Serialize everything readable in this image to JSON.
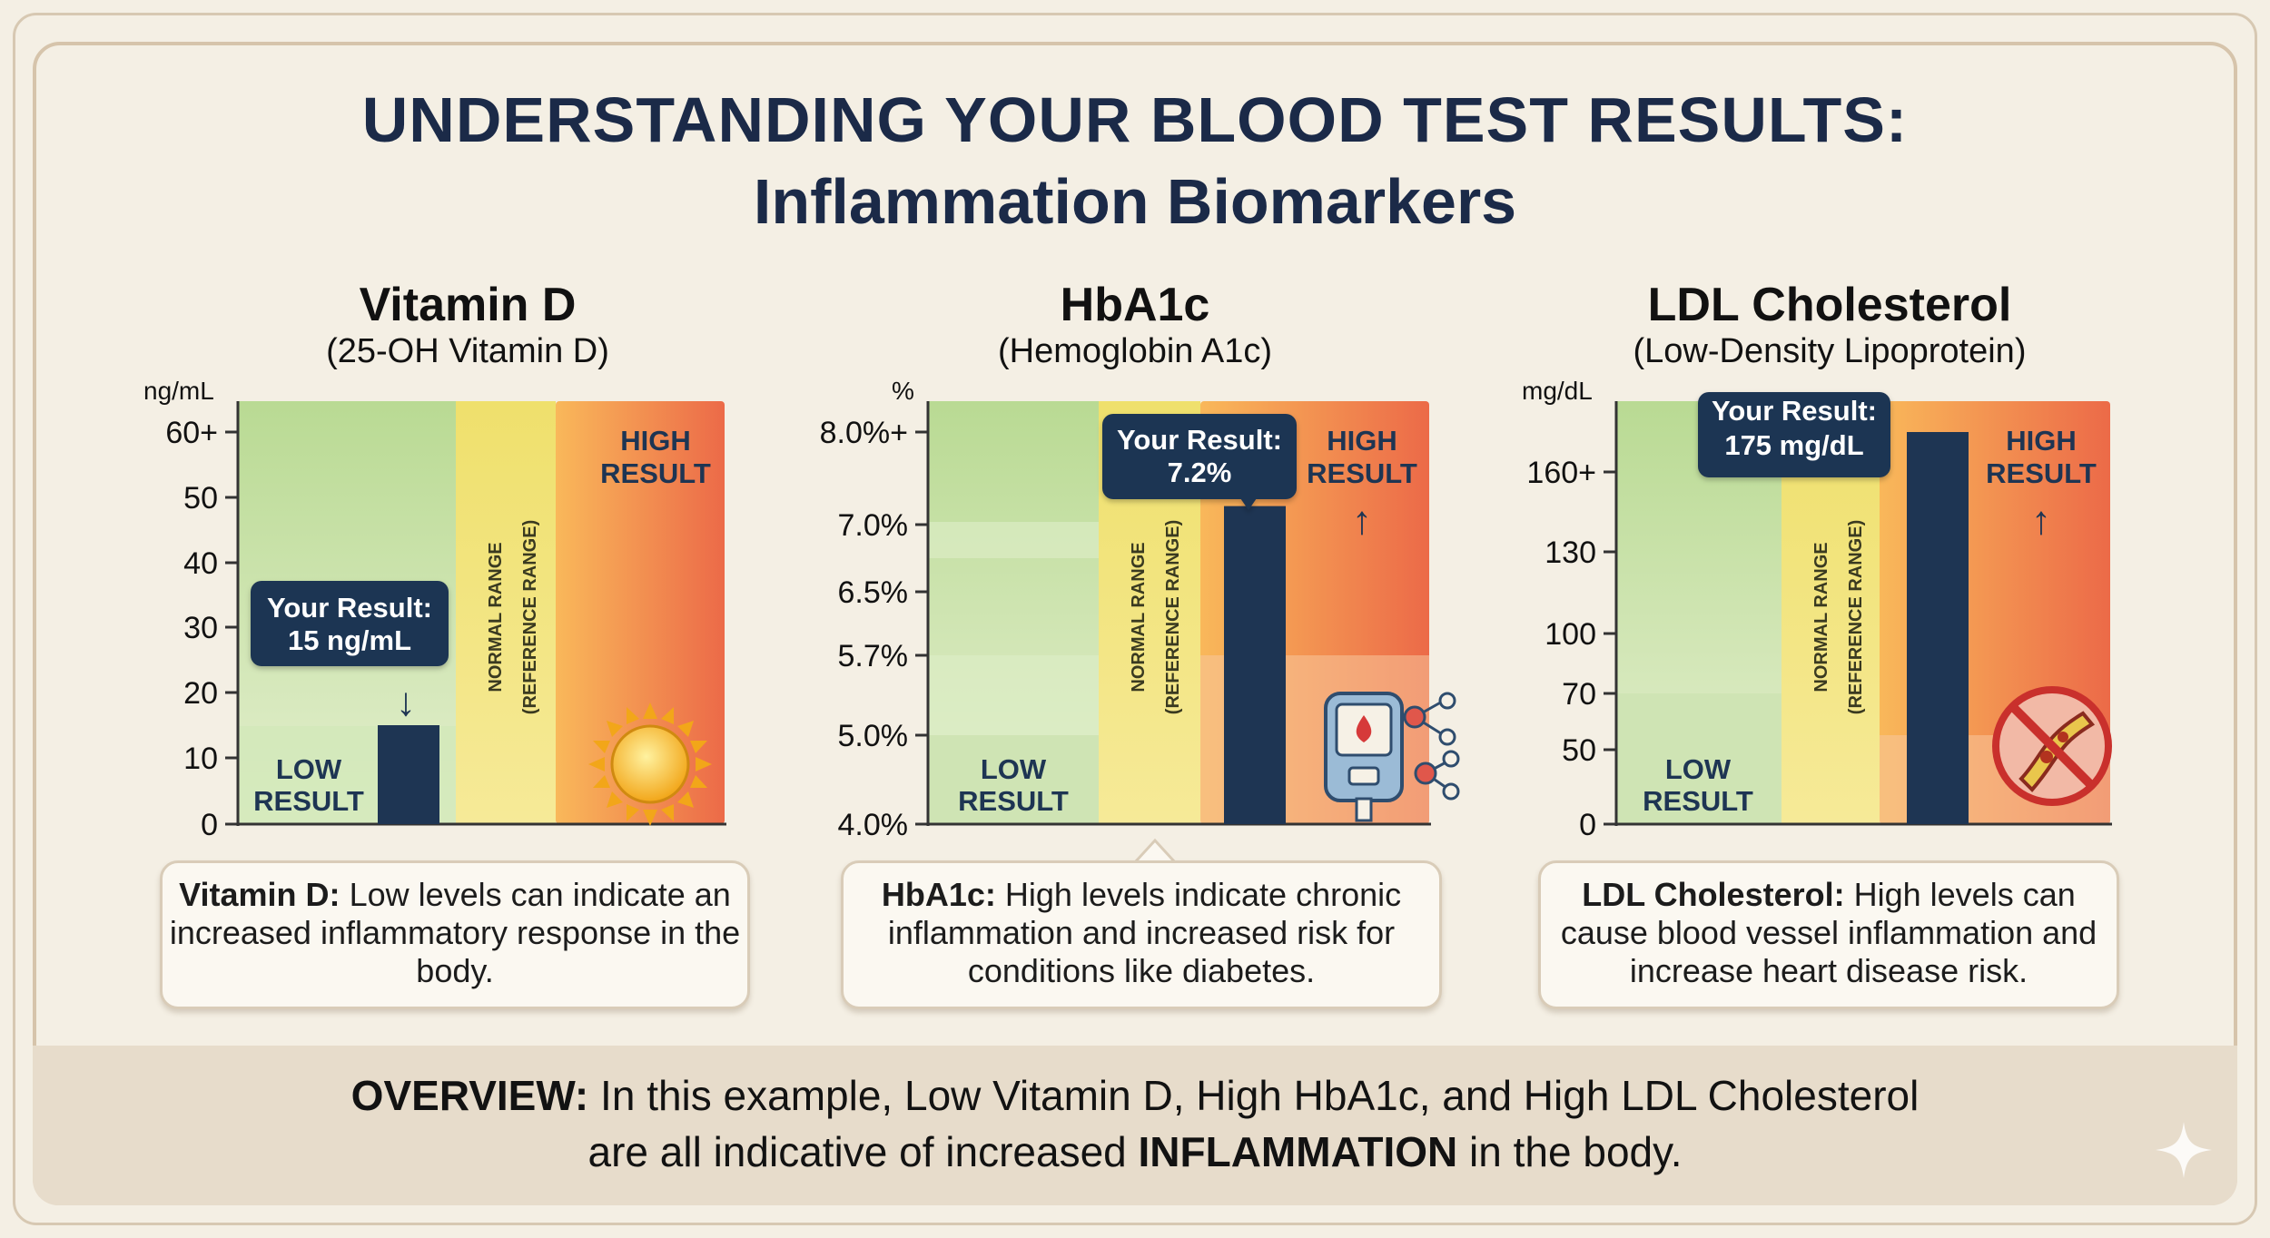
{
  "title": {
    "line1": "UNDERSTANDING YOUR BLOOD TEST RESULTS:",
    "line2": "Inflammation Biomarkers"
  },
  "colors": {
    "navy": "#1e3553",
    "low_zone": "#cfe3b3",
    "normal_zone": "#f0e07a",
    "high_zone": "#ef7a4e",
    "caption_bg": "#fbf8f1",
    "footer_bg": "#e7dccb"
  },
  "panels": [
    {
      "title": "Vitamin D",
      "subtitle": "(25-OH Vitamin D)",
      "icon": "sun-icon",
      "caption_bold": "Vitamin D:",
      "caption_text": "Low levels can indicate an increased inflammatory response in the body."
    },
    {
      "title": "HbA1c",
      "subtitle": "(Hemoglobin A1c)",
      "icon": "glucose-meter-icon",
      "caption_bold": "HbA1c:",
      "caption_text": "High levels indicate chronic inflammation and increased risk for conditions like diabetes."
    },
    {
      "title": "LDL Cholesterol",
      "subtitle": "(Low-Density Lipoprotein)",
      "icon": "blocked-artery-icon",
      "caption_bold": "LDL Cholesterol:",
      "caption_text": "High levels can cause blood vessel inflammation and increase heart disease risk."
    }
  ],
  "chart_data": [
    {
      "type": "bar",
      "ylabel": "ng/mL",
      "yticks": [
        "0",
        "10",
        "20",
        "30",
        "40",
        "50",
        "60+"
      ],
      "value": 15,
      "value_label": "Your Result:\n15 ng/mL",
      "zones": [
        "LOW\nRESULT",
        "NORMAL RANGE\n(REFERENCE RANGE)",
        "HIGH\nRESULT"
      ],
      "arrow": "down"
    },
    {
      "type": "bar",
      "ylabel": "%",
      "yticks": [
        "4.0%",
        "5.0%",
        "5.7%",
        "6.5%",
        "7.0%",
        "8.0%+"
      ],
      "value": 7.2,
      "value_label": "Your Result:\n7.2%",
      "zones": [
        "LOW\nRESULT",
        "NORMAL RANGE\n(REFERENCE RANGE)",
        "HIGH\nRESULT"
      ],
      "arrow": "up"
    },
    {
      "type": "bar",
      "ylabel": "mg/dL",
      "yticks": [
        "0",
        "50",
        "70",
        "100",
        "130",
        "160+"
      ],
      "value": 175,
      "value_label": "Your Result:\n175 mg/dL",
      "zones": [
        "LOW\nRESULT",
        "NORMAL RANGE\n(REFERENCE RANGE)",
        "HIGH\nRESULT"
      ],
      "arrow": "up"
    }
  ],
  "footer": {
    "line1_bold": "OVERVIEW:",
    "line1_rest": "In this example, Low Vitamin D, High HbA1c, and High LDL Cholesterol",
    "line2_start": "are all indicative of increased",
    "line2_bold": "INFLAMMATION",
    "line2_end": "in the body."
  }
}
